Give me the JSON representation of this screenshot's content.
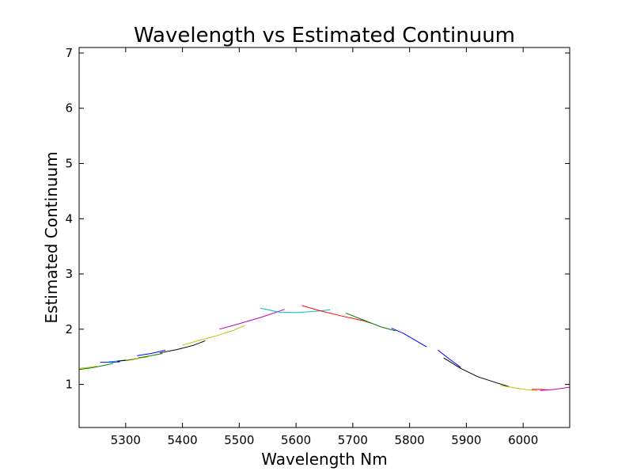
{
  "chart_data": {
    "type": "line",
    "title": "Wavelength vs Estimated Continuum",
    "xlabel": "Wavelength Nm",
    "ylabel": "Estimated Continuum",
    "xlim": [
      5218,
      6082
    ],
    "ylim": [
      0.22,
      7.1
    ],
    "xticks": [
      5300,
      5400,
      5500,
      5600,
      5700,
      5800,
      5900,
      6000
    ],
    "yticks": [
      1,
      2,
      3,
      4,
      5,
      6,
      7
    ],
    "grid": false,
    "legend": "none",
    "series": [
      {
        "color": "#bfbf00",
        "x": [
          5218,
          5235,
          5250
        ],
        "y": [
          1.29,
          1.31,
          1.33
        ]
      },
      {
        "color": "#007f00",
        "x": [
          5218,
          5240,
          5260,
          5278
        ],
        "y": [
          1.27,
          1.3,
          1.34,
          1.38
        ]
      },
      {
        "color": "#0000ff",
        "x": [
          5255,
          5275,
          5290
        ],
        "y": [
          1.4,
          1.4,
          1.41
        ]
      },
      {
        "color": "#00bfbf",
        "x": [
          5270,
          5290,
          5305
        ],
        "y": [
          1.41,
          1.43,
          1.45
        ]
      },
      {
        "color": "#000000",
        "x": [
          5285,
          5305,
          5322
        ],
        "y": [
          1.42,
          1.44,
          1.47
        ]
      },
      {
        "color": "#bfbf00",
        "x": [
          5300,
          5320,
          5340
        ],
        "y": [
          1.44,
          1.47,
          1.5
        ]
      },
      {
        "color": "#007f00",
        "x": [
          5322,
          5345,
          5365
        ],
        "y": [
          1.48,
          1.52,
          1.56
        ]
      },
      {
        "color": "#0000ff",
        "x": [
          5320,
          5345,
          5370
        ],
        "y": [
          1.52,
          1.56,
          1.62
        ]
      },
      {
        "color": "#000000",
        "x": [
          5360,
          5390,
          5420,
          5440
        ],
        "y": [
          1.57,
          1.63,
          1.71,
          1.79
        ]
      },
      {
        "color": "#bfbf00",
        "x": [
          5400,
          5430,
          5460,
          5490,
          5510
        ],
        "y": [
          1.71,
          1.8,
          1.88,
          1.98,
          2.07
        ]
      },
      {
        "color": "#bf00bf",
        "x": [
          5465,
          5500,
          5540,
          5580
        ],
        "y": [
          2.0,
          2.1,
          2.22,
          2.36
        ]
      },
      {
        "color": "#00bfbf",
        "x": [
          5537,
          5570,
          5600,
          5630,
          5660
        ],
        "y": [
          2.38,
          2.31,
          2.3,
          2.32,
          2.35
        ]
      },
      {
        "color": "#ff0000",
        "x": [
          5610,
          5640,
          5680,
          5720,
          5732
        ],
        "y": [
          2.43,
          2.34,
          2.24,
          2.15,
          2.11
        ]
      },
      {
        "color": "#007f00",
        "x": [
          5688,
          5720,
          5750,
          5775
        ],
        "y": [
          2.29,
          2.16,
          2.04,
          1.97
        ]
      },
      {
        "color": "#0000ff",
        "x": [
          5768,
          5790,
          5810,
          5830
        ],
        "y": [
          2.02,
          1.92,
          1.8,
          1.68
        ]
      },
      {
        "color": "#0000ff",
        "x": [
          5850,
          5870,
          5890
        ],
        "y": [
          1.62,
          1.46,
          1.31
        ]
      },
      {
        "color": "#000000",
        "x": [
          5860,
          5890,
          5920,
          5950,
          5975
        ],
        "y": [
          1.48,
          1.29,
          1.14,
          1.04,
          0.96
        ]
      },
      {
        "color": "#bfbf00",
        "x": [
          5960,
          5990,
          6010,
          6025
        ],
        "y": [
          0.98,
          0.93,
          0.9,
          0.89
        ]
      },
      {
        "color": "#ff0000",
        "x": [
          6015,
          6030,
          6045
        ],
        "y": [
          0.91,
          0.91,
          0.9
        ]
      },
      {
        "color": "#bf00bf",
        "x": [
          6030,
          6055,
          6082
        ],
        "y": [
          0.89,
          0.91,
          0.95
        ]
      }
    ]
  }
}
